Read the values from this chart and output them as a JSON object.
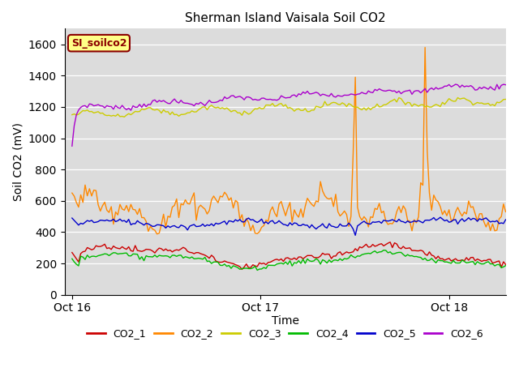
{
  "title": "Sherman Island Vaisala Soil CO2",
  "ylabel": "Soil CO2 (mV)",
  "xlabel": "Time",
  "xtick_labels": [
    "Oct 16",
    "Oct 17",
    "Oct 18"
  ],
  "xtick_positions": [
    0,
    1,
    2
  ],
  "xlim": [
    -0.04,
    2.3
  ],
  "ylim": [
    0,
    1700
  ],
  "yticks": [
    0,
    200,
    400,
    600,
    800,
    1000,
    1200,
    1400,
    1600
  ],
  "bg_color": "#dcdcdc",
  "line_colors": {
    "CO2_1": "#cc0000",
    "CO2_2": "#ff8800",
    "CO2_3": "#cccc00",
    "CO2_4": "#00bb00",
    "CO2_5": "#0000cc",
    "CO2_6": "#aa00cc"
  },
  "legend_label": "SI_soilco2",
  "legend_label_fgcolor": "#8b0000",
  "legend_label_bgcolor": "#ffff88",
  "n_points": 200,
  "title_fontsize": 11,
  "label_fontsize": 10,
  "tick_fontsize": 10,
  "spike1_x": 1.5,
  "spike2_x": 1.87,
  "spike1_val": 1390,
  "spike2_val": 1580
}
